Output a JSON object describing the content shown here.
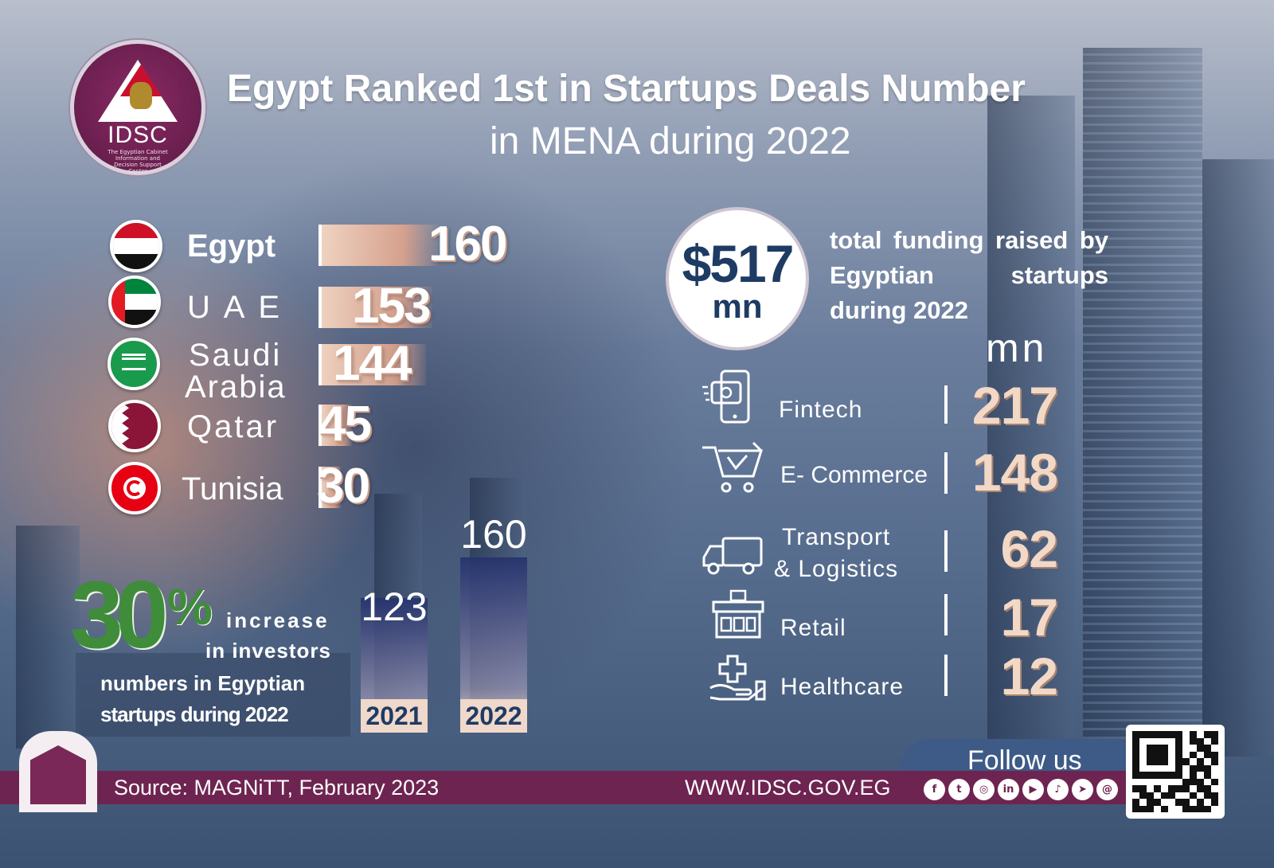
{
  "header": {
    "logo_text": "IDSC",
    "logo_subtitle": "The Egyptian Cabinet Information and Decision Support Center",
    "title_line1": "Egypt Ranked 1st in Startups Deals Number",
    "title_line2": "in MENA during 2022"
  },
  "chart_data": [
    {
      "type": "bar",
      "orientation": "horizontal",
      "categories": [
        "Egypt",
        "UAE",
        "Saudi Arabia",
        "Qatar",
        "Tunisia"
      ],
      "values": [
        160,
        153,
        144,
        45,
        30
      ],
      "title": "",
      "xlabel": "",
      "ylabel": ""
    },
    {
      "type": "bar",
      "categories": [
        "2021",
        "2022"
      ],
      "values": [
        123,
        160
      ],
      "title": "",
      "xlabel": "",
      "ylabel": ""
    },
    {
      "type": "table",
      "unit": "mn",
      "categories": [
        "Fintech",
        "E- Commerce",
        "Transport & Logistics",
        "Retail",
        "Healthcare"
      ],
      "values": [
        217,
        148,
        62,
        17,
        12
      ]
    }
  ],
  "deals": {
    "countries": [
      {
        "label": "Egypt",
        "value": "160",
        "flag": "egypt-flag"
      },
      {
        "label": "U A E",
        "value": "153",
        "flag": "uae-flag"
      },
      {
        "label": "Saudi",
        "label2": "Arabia",
        "value": "144",
        "flag": "saudi-flag"
      },
      {
        "label": "Qatar",
        "value": "45",
        "flag": "qatar-flag"
      },
      {
        "label": "Tunisia",
        "value": "30",
        "flag": "tunisia-flag"
      }
    ]
  },
  "funding": {
    "amount": "$517",
    "unit": "mn",
    "description": "total funding raised by Egyptian startups during 2022",
    "sectors_unit": "mn",
    "sectors": [
      {
        "label": "Fintech",
        "value": "217",
        "icon": "mobile-payment-icon"
      },
      {
        "label": "E- Commerce",
        "value": "148",
        "icon": "shopping-cart-icon"
      },
      {
        "label": "Transport",
        "label2": "& Logistics",
        "value": "62",
        "icon": "delivery-truck-icon"
      },
      {
        "label": "Retail",
        "value": "17",
        "icon": "storefront-icon"
      },
      {
        "label": "Healthcare",
        "value": "12",
        "icon": "health-care-hand-icon"
      }
    ]
  },
  "investors": {
    "percent": "30",
    "percent_sign": "%",
    "line1": "increase",
    "line2": "in investors",
    "line3": "numbers in Egyptian",
    "line4": "startups during 2022",
    "years": [
      {
        "year": "2021",
        "value": "123"
      },
      {
        "year": "2022",
        "value": "160"
      }
    ]
  },
  "footer": {
    "source": "Source: MAGNiTT, February 2023",
    "website": "WWW.IDSC.GOV.EG",
    "follow": "Follow us",
    "social_icons": [
      "facebook-icon",
      "twitter-icon",
      "instagram-icon",
      "linkedin-icon",
      "youtube-icon",
      "tiktok-icon",
      "telegram-icon",
      "threads-icon"
    ]
  },
  "colors": {
    "brand_purple": "#6e2450",
    "navy": "#1e3b63",
    "accent_green": "#3f8c3a",
    "bar_peach": "#f6d6c2"
  }
}
